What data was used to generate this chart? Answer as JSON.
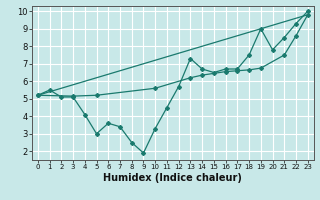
{
  "xlabel": "Humidex (Indice chaleur)",
  "bg_color": "#c8e8e8",
  "grid_color": "#ffffff",
  "line_color": "#1a7a6e",
  "xlim": [
    -0.5,
    23.5
  ],
  "ylim": [
    1.5,
    10.3
  ],
  "xticks": [
    0,
    1,
    2,
    3,
    4,
    5,
    6,
    7,
    8,
    9,
    10,
    11,
    12,
    13,
    14,
    15,
    16,
    17,
    18,
    19,
    20,
    21,
    22,
    23
  ],
  "yticks": [
    2,
    3,
    4,
    5,
    6,
    7,
    8,
    9,
    10
  ],
  "line1_x": [
    0,
    1,
    2,
    3,
    4,
    5,
    6,
    7,
    8,
    9,
    10,
    11,
    12,
    13,
    14,
    15,
    16,
    17,
    18,
    19,
    20,
    21,
    22,
    23
  ],
  "line1_y": [
    5.2,
    5.5,
    5.1,
    5.1,
    4.1,
    3.0,
    3.6,
    3.4,
    2.5,
    1.9,
    3.3,
    4.5,
    5.7,
    7.3,
    6.7,
    6.5,
    6.7,
    6.7,
    7.5,
    9.0,
    7.8,
    8.5,
    9.3,
    10.0
  ],
  "line2_x": [
    0,
    3,
    5,
    10,
    13,
    14,
    16,
    17,
    18,
    19,
    21,
    22,
    23
  ],
  "line2_y": [
    5.2,
    5.15,
    5.2,
    5.6,
    6.2,
    6.35,
    6.55,
    6.6,
    6.65,
    6.75,
    7.5,
    8.6,
    9.8
  ],
  "line3_x": [
    0,
    23
  ],
  "line3_y": [
    5.2,
    9.8
  ],
  "xlabel_fontsize": 7.0,
  "tick_fontsize_x": 5.0,
  "tick_fontsize_y": 6.0
}
